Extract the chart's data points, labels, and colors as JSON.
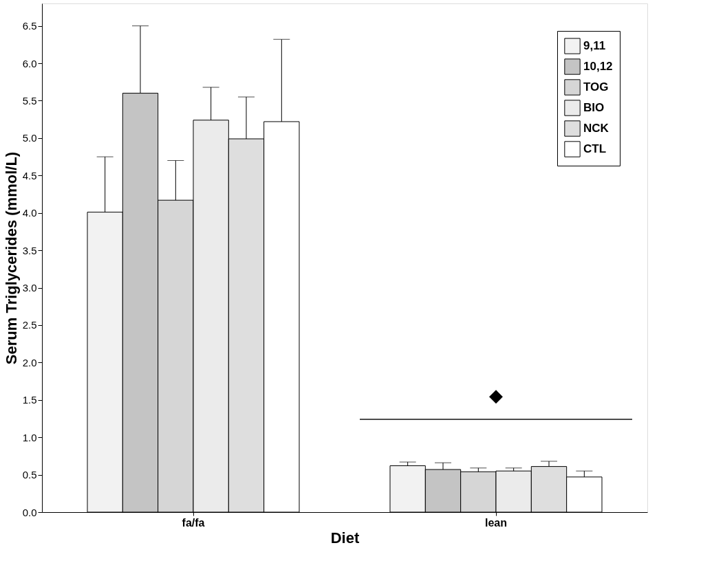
{
  "chart_data": {
    "type": "bar",
    "xlabel": "Diet",
    "ylabel": "Serum Triglycerides (mmol/L)",
    "categories": [
      "fa/fa",
      "lean"
    ],
    "series": [
      {
        "name": "9,11",
        "color": "#f2f2f2",
        "values": [
          4.01,
          0.62
        ],
        "errors": [
          [
            4.01,
            4.75
          ],
          [
            0.62,
            0.67
          ]
        ]
      },
      {
        "name": "10,12",
        "color": "#c4c4c4",
        "values": [
          5.6,
          0.57
        ],
        "errors": [
          [
            5.6,
            6.5
          ],
          [
            0.57,
            0.66
          ]
        ]
      },
      {
        "name": "TOG",
        "color": "#d6d6d6",
        "values": [
          4.17,
          0.54
        ],
        "errors": [
          [
            4.17,
            4.7
          ],
          [
            0.54,
            0.59
          ]
        ]
      },
      {
        "name": "BIO",
        "color": "#ebebeb",
        "values": [
          5.24,
          0.55
        ],
        "errors": [
          [
            5.24,
            5.68
          ],
          [
            0.55,
            0.59
          ]
        ]
      },
      {
        "name": "NCK",
        "color": "#dedede",
        "values": [
          4.99,
          0.61
        ],
        "errors": [
          [
            4.99,
            5.55
          ],
          [
            0.61,
            0.68
          ]
        ]
      },
      {
        "name": "CTL",
        "color": "#ffffff",
        "values": [
          5.22,
          0.47
        ],
        "errors": [
          [
            5.22,
            6.32
          ],
          [
            0.47,
            0.55
          ]
        ]
      }
    ],
    "ylim": [
      0,
      6.8
    ],
    "yticks": [
      {
        "value": 0,
        "label": "0.0"
      },
      {
        "value": 0.5,
        "label": "0.5"
      },
      {
        "value": 1,
        "label": "1.0"
      },
      {
        "value": 1.5,
        "label": "1.5"
      },
      {
        "value": 2,
        "label": "2.0"
      },
      {
        "value": 2.5,
        "label": "2.5"
      },
      {
        "value": 3,
        "label": "3.0"
      },
      {
        "value": 3.5,
        "label": "3.5"
      },
      {
        "value": 4,
        "label": "4.0"
      },
      {
        "value": 4.5,
        "label": "4.5"
      },
      {
        "value": 5,
        "label": "5.0"
      },
      {
        "value": 5.5,
        "label": "5.5"
      },
      {
        "value": 6,
        "label": "6.0"
      },
      {
        "value": 6.5,
        "label": "6.5"
      }
    ],
    "annotations": [
      "◆"
    ],
    "ref_lines": [
      {
        "axis": "y",
        "value": 1.24,
        "color": "#000000"
      }
    ],
    "legend": "top right",
    "grid": false
  }
}
